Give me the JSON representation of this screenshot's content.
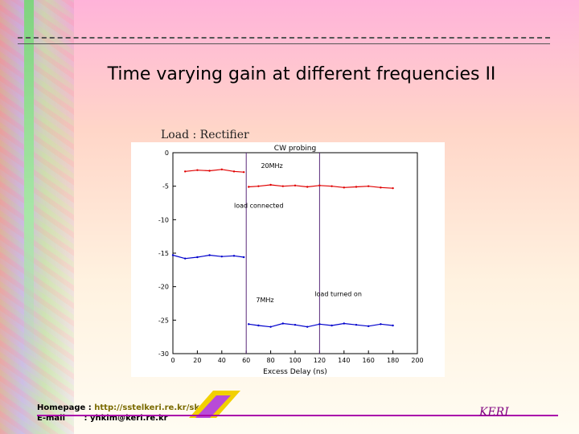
{
  "slide": {
    "title": "Time varying gain at different frequencies II",
    "subtitle": "Load : Rectifier"
  },
  "footer": {
    "homepage_label": "Homepage :",
    "homepage_url": "http://sstelkeri.re.kr/skc/",
    "email_label": "E-mail",
    "email_value": ": yhkim@keri.re.kr",
    "brand": "KERI"
  },
  "colors": {
    "series_20mhz": "#e00000",
    "series_7mhz": "#0000cc",
    "marker_line": "#5a2a7a",
    "footer_rule": "#aa00aa"
  },
  "chart_data": {
    "type": "line",
    "title": "CW probing",
    "xlabel": "Excess Delay (ns)",
    "ylabel": "",
    "xlim": [
      0,
      200
    ],
    "ylim": [
      -30,
      0
    ],
    "xticks": [
      0,
      20,
      40,
      60,
      80,
      100,
      120,
      140,
      160,
      180,
      200
    ],
    "yticks": [
      0,
      -5,
      -10,
      -15,
      -20,
      -25,
      -30
    ],
    "grid": false,
    "series": [
      {
        "name": "20MHz",
        "color": "#e00000",
        "x": [
          10,
          20,
          30,
          40,
          50,
          58,
          62,
          70,
          80,
          90,
          100,
          110,
          120,
          130,
          140,
          150,
          160,
          170,
          180
        ],
        "values": [
          -2.8,
          -2.6,
          -2.7,
          -2.5,
          -2.8,
          -2.9,
          -5.1,
          -5.0,
          -4.8,
          -5.0,
          -4.9,
          -5.1,
          -4.9,
          -5.0,
          -5.2,
          -5.1,
          -5.0,
          -5.2,
          -5.3
        ]
      },
      {
        "name": "7MHz",
        "color": "#0000cc",
        "x": [
          0,
          10,
          20,
          30,
          40,
          50,
          58,
          62,
          70,
          80,
          90,
          100,
          110,
          120,
          130,
          140,
          150,
          160,
          170,
          180
        ],
        "values": [
          -15.3,
          -15.8,
          -15.6,
          -15.3,
          -15.5,
          -15.4,
          -15.6,
          -25.6,
          -25.8,
          -26.0,
          -25.5,
          -25.7,
          -26.0,
          -25.6,
          -25.8,
          -25.5,
          -25.7,
          -25.9,
          -25.6,
          -25.8
        ]
      }
    ],
    "vertical_markers": [
      60,
      120
    ],
    "annotations": [
      {
        "text": "20MHz",
        "x": 72,
        "y": -2.3
      },
      {
        "text": "load connected",
        "x": 50,
        "y": -8.2
      },
      {
        "text": "7MHz",
        "x": 68,
        "y": -22.3
      },
      {
        "text": "load turned on",
        "x": 116,
        "y": -21.4
      }
    ]
  }
}
